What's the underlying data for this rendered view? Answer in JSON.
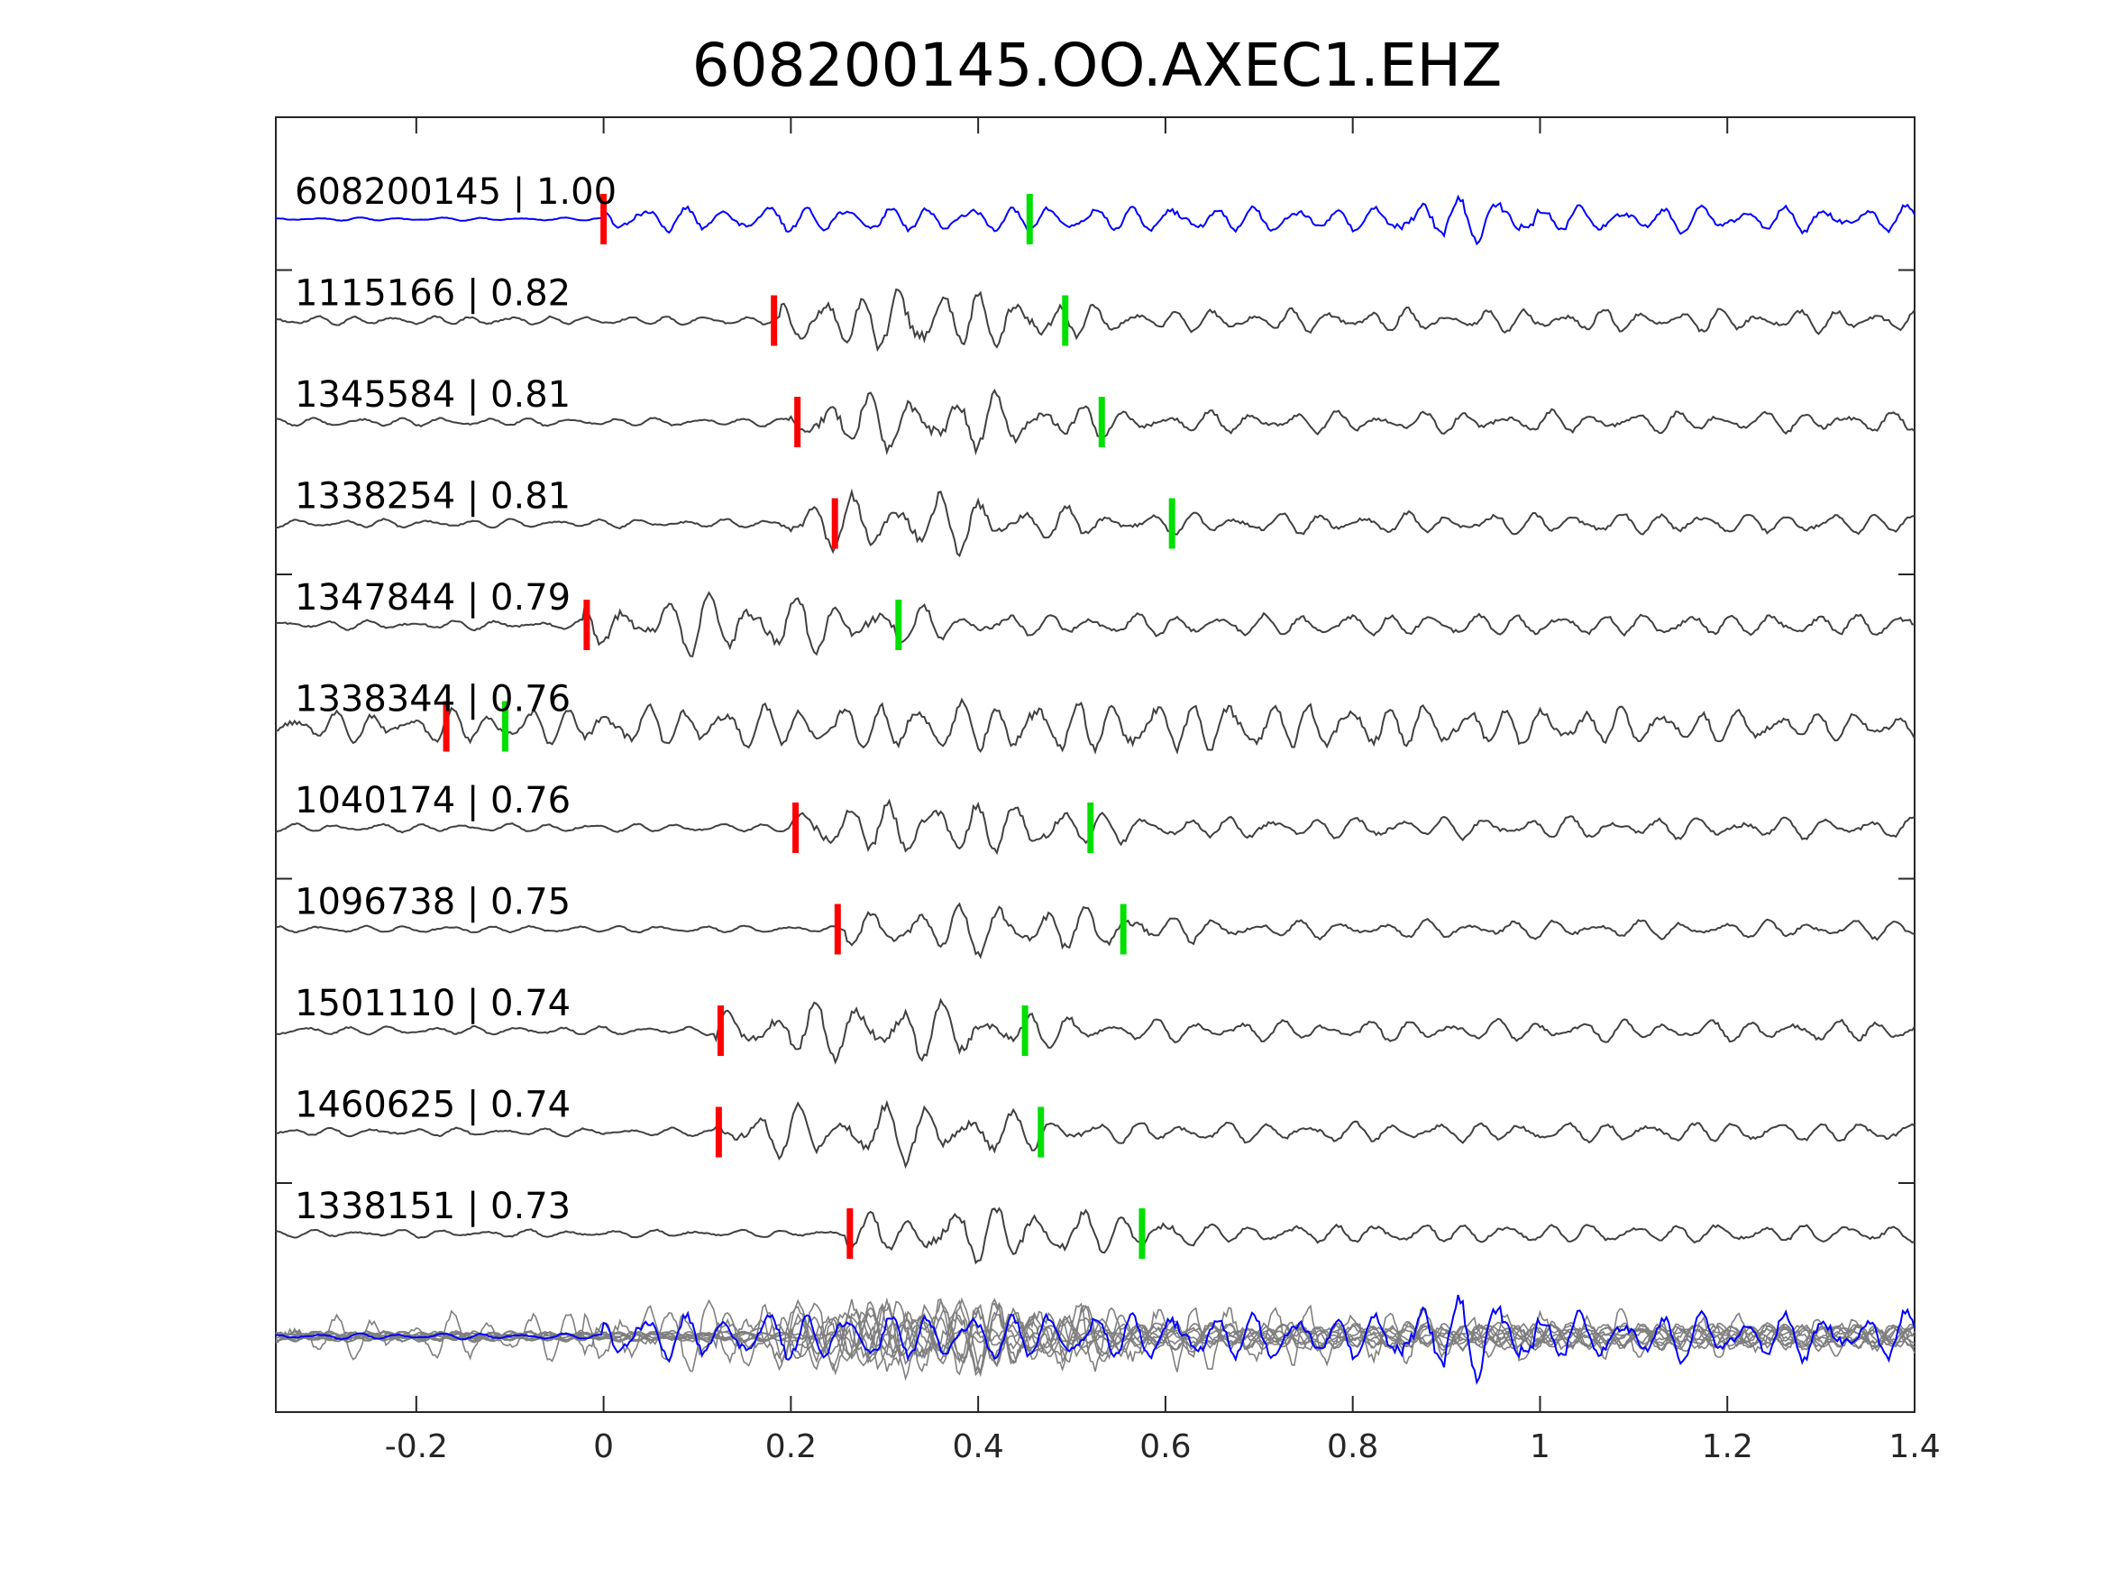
{
  "chart_data": {
    "type": "line",
    "title": "608200145.OO.AXEC1.EHZ",
    "xlabel": "",
    "ylabel": "",
    "xlim": [
      -0.35,
      1.4
    ],
    "xticks": [
      {
        "value": -0.2,
        "label": "-0.2"
      },
      {
        "value": 0,
        "label": "0"
      },
      {
        "value": 0.2,
        "label": "0.2"
      },
      {
        "value": 0.4,
        "label": "0.4"
      },
      {
        "value": 0.6,
        "label": "0.6"
      },
      {
        "value": 0.8,
        "label": "0.8"
      },
      {
        "value": 1,
        "label": "1"
      },
      {
        "value": 1.2,
        "label": "1.2"
      },
      {
        "value": 1.4,
        "label": "1.4"
      }
    ],
    "grid": false,
    "colors": {
      "template": "#0000ff",
      "match": "#404040",
      "stack": "#7f7f7f",
      "p_pick": "#ff0000",
      "s_pick": "#00e000",
      "axes": "#262626"
    },
    "series": [
      {
        "label": "608200145 | 1.00",
        "p_pick": 0.0,
        "s_pick": 0.455,
        "onset": 0.0,
        "end": 1.4,
        "amp": 0.75,
        "freq": 23,
        "template": true,
        "late_burst": 0.9
      },
      {
        "label": "1115166 | 0.82",
        "p_pick": 0.182,
        "s_pick": 0.493,
        "onset": 0.19,
        "end": 0.48,
        "amp": 1.0,
        "freq": 24
      },
      {
        "label": "1345584 | 0.81",
        "p_pick": 0.207,
        "s_pick": 0.532,
        "onset": 0.2,
        "end": 0.5,
        "amp": 0.95,
        "freq": 22
      },
      {
        "label": "1338254 | 0.81",
        "p_pick": 0.247,
        "s_pick": 0.607,
        "onset": 0.19,
        "end": 0.46,
        "amp": 0.95,
        "freq": 22
      },
      {
        "label": "1347844 | 0.79",
        "p_pick": -0.018,
        "s_pick": 0.315,
        "onset": -0.02,
        "end": 0.32,
        "amp": 1.0,
        "freq": 22
      },
      {
        "label": "1338344 | 0.76",
        "p_pick": -0.168,
        "s_pick": -0.105,
        "onset": -0.35,
        "end": 1.4,
        "amp": 0.8,
        "freq": 24
      },
      {
        "label": "1040174 | 0.76",
        "p_pick": 0.205,
        "s_pick": 0.52,
        "onset": 0.2,
        "end": 0.52,
        "amp": 0.95,
        "freq": 22
      },
      {
        "label": "1096738 | 0.75",
        "p_pick": 0.25,
        "s_pick": 0.555,
        "onset": 0.26,
        "end": 0.58,
        "amp": 0.8,
        "freq": 22
      },
      {
        "label": "1501110 | 0.74",
        "p_pick": 0.125,
        "s_pick": 0.45,
        "onset": 0.12,
        "end": 0.45,
        "amp": 0.95,
        "freq": 22
      },
      {
        "label": "1460625 | 0.74",
        "p_pick": 0.123,
        "s_pick": 0.467,
        "onset": 0.12,
        "end": 0.46,
        "amp": 0.9,
        "freq": 22
      },
      {
        "label": "1338151 | 0.73",
        "p_pick": 0.263,
        "s_pick": 0.575,
        "onset": 0.26,
        "end": 0.58,
        "amp": 0.85,
        "freq": 22
      }
    ]
  }
}
